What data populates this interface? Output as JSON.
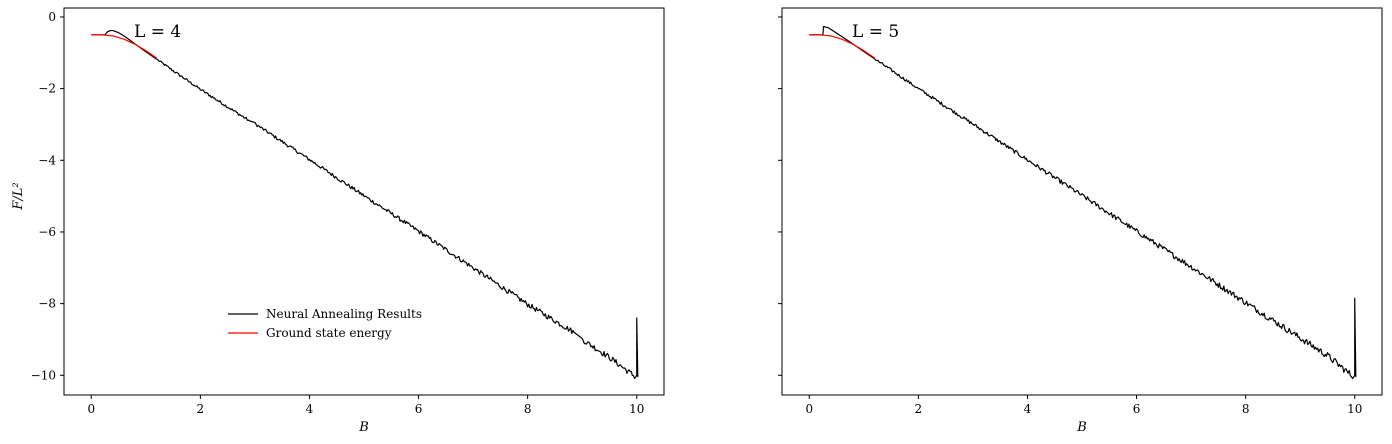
{
  "chart_data": [
    {
      "type": "line",
      "title": "L = 4",
      "xlabel": "B",
      "ylabel": "F/L²",
      "xlim": [
        -0.5,
        10.5
      ],
      "ylim": [
        -10.55,
        0.25
      ],
      "xticks": [
        0,
        2,
        4,
        6,
        8,
        10
      ],
      "yticks": [
        0,
        -2,
        -4,
        -6,
        -8,
        -10
      ],
      "grid": false,
      "legend": {
        "position": "lower-center",
        "entries": [
          "Neural Annealing Results",
          "Ground state energy"
        ]
      },
      "series": [
        {
          "name": "Neural Annealing Results",
          "color": "#000000",
          "x": [
            0,
            0.2,
            0.25,
            0.3,
            0.35,
            0.4,
            0.5,
            0.6,
            0.7,
            0.8,
            1.0,
            1.2,
            1.5,
            2.0,
            2.9,
            3.0,
            4.0,
            5.0,
            6.0,
            7.0,
            8.0,
            8.85,
            9.0,
            9.5,
            9.98,
            10.0,
            10.0,
            10.02
          ],
          "y": [
            -0.5,
            -0.5,
            -0.5,
            -0.41,
            -0.38,
            -0.38,
            -0.44,
            -0.53,
            -0.64,
            -0.75,
            -0.97,
            -1.18,
            -1.5,
            -2.02,
            -2.9,
            -2.98,
            -3.98,
            -4.99,
            -5.98,
            -7.0,
            -8.02,
            -8.8,
            -9.0,
            -9.5,
            -10.05,
            -10.0,
            -8.4,
            -10.05
          ],
          "noise": 0.06
        },
        {
          "name": "Ground state energy",
          "color": "#ff0000",
          "x": [
            0,
            0.2,
            0.4,
            0.6,
            0.8,
            1.0,
            1.2
          ],
          "y": [
            -0.5,
            -0.5,
            -0.53,
            -0.62,
            -0.76,
            -0.94,
            -1.15
          ]
        }
      ]
    },
    {
      "type": "line",
      "title": "L = 5",
      "xlabel": "B",
      "ylabel": "",
      "xlim": [
        -0.5,
        10.5
      ],
      "ylim": [
        -10.55,
        0.25
      ],
      "xticks": [
        0,
        2,
        4,
        6,
        8,
        10
      ],
      "yticks": [
        0,
        -2,
        -4,
        -6,
        -8,
        -10
      ],
      "grid": false,
      "series": [
        {
          "name": "Neural Annealing Results",
          "color": "#000000",
          "x": [
            0,
            0.2,
            0.25,
            0.26,
            0.35,
            0.5,
            0.7,
            0.9,
            1.1,
            1.5,
            2.0,
            3.0,
            4.0,
            5.0,
            6.0,
            7.0,
            8.0,
            9.0,
            9.5,
            9.98,
            10.0,
            10.0,
            10.02
          ],
          "y": [
            -0.5,
            -0.5,
            -0.5,
            -0.27,
            -0.3,
            -0.45,
            -0.65,
            -0.86,
            -1.07,
            -1.48,
            -2.0,
            -2.99,
            -3.99,
            -4.98,
            -5.98,
            -6.97,
            -7.97,
            -8.96,
            -9.45,
            -10.05,
            -10.0,
            -7.85,
            -10.05
          ],
          "noise": 0.07
        },
        {
          "name": "Ground state energy",
          "color": "#ff0000",
          "x": [
            0,
            0.2,
            0.4,
            0.6,
            0.8,
            1.0,
            1.2
          ],
          "y": [
            -0.5,
            -0.5,
            -0.53,
            -0.62,
            -0.76,
            -0.94,
            -1.15
          ]
        }
      ]
    }
  ]
}
